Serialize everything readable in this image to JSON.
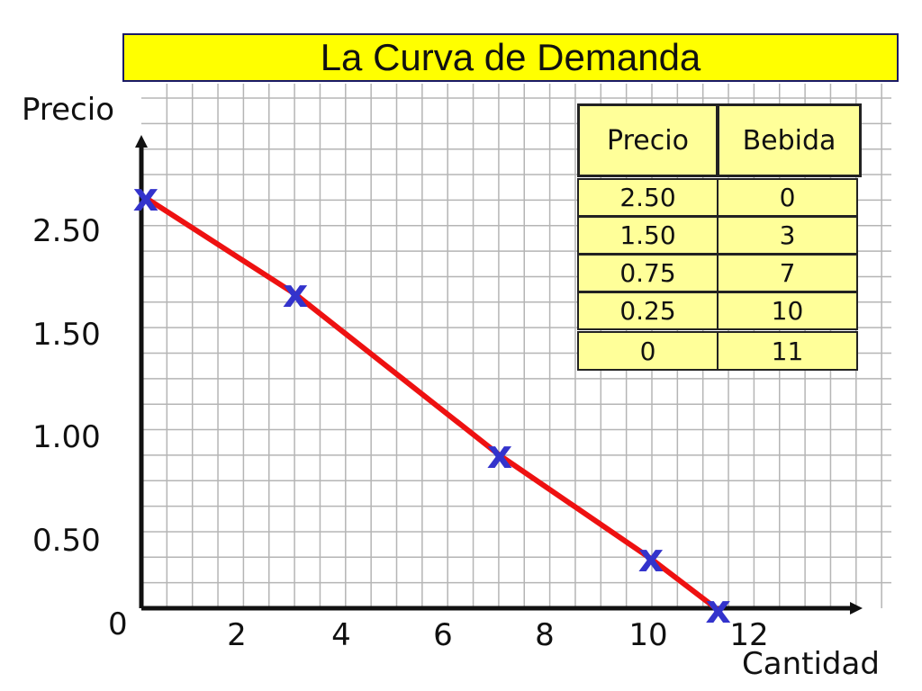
{
  "title": "La Curva de Demanda",
  "colors": {
    "curve": "#ee1111",
    "marker": "#3333cc",
    "title_bg": "#ffff00",
    "table_bg": "#ffff99",
    "grid": "#b5b5b5"
  },
  "chart_data": {
    "type": "line",
    "title": "La Curva de Demanda",
    "xlabel": "Cantidad",
    "ylabel": "Precio",
    "grid": true,
    "marker": "x",
    "x_ticks": [
      "0",
      "2",
      "4",
      "6",
      "8",
      "10",
      "12"
    ],
    "y_ticks": [
      "0",
      "0.50",
      "1.00",
      "1.50",
      "2.50"
    ],
    "series": [
      {
        "x": [
          0,
          3,
          7,
          10,
          11
        ],
        "y": [
          2.5,
          1.5,
          0.75,
          0.25,
          0
        ]
      }
    ]
  },
  "table": {
    "headers": [
      "Precio",
      "Bebida"
    ],
    "rows": [
      [
        "2.50",
        "0"
      ],
      [
        "1.50",
        "3"
      ],
      [
        "0.75",
        "7"
      ],
      [
        "0.25",
        "10"
      ],
      [
        "0",
        "11"
      ]
    ]
  }
}
